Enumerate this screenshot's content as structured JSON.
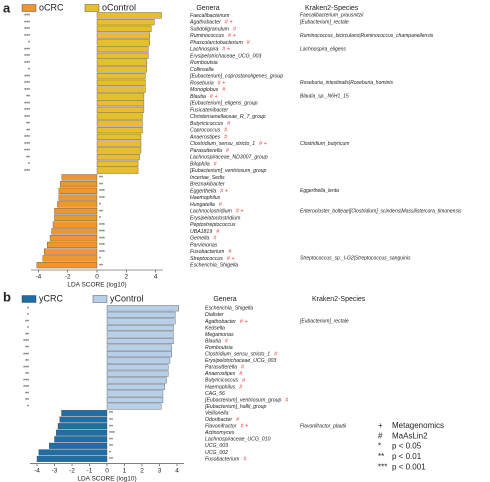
{
  "chart_data": [
    {
      "panel": "a",
      "type": "bar",
      "orientation": "horizontal",
      "genera_title": "Genera",
      "species_title": "Kraken2-Species",
      "categories": [
        "Faecalibacterium",
        "Agathobacter",
        "Subdoligranulum",
        "Ruminococcus",
        "Phascolarctobacterium",
        "Lachnospira",
        "Erysipelotrichaceae_UCG_003",
        "Romboutsia",
        "Collinsella",
        "[Eubacterium]_coprostanoligenes_group",
        "Roseburia",
        "Monoglobus",
        "Blautia",
        "[Eubacterium]_eligens_group",
        "Fusicatenibacter",
        "Christensenellaceae_R_7_group",
        "Butyricicoccus",
        "Coprococcus",
        "Anaerostipes",
        "Clostridium_sensu_stricto_1",
        "Parasutterella",
        "Lachnospiraceae_ND3007_group",
        "Bilophila",
        "[Eubacterium]_ventriosum_group",
        "Incertae_Sedis",
        "Breznakibacter",
        "Eggerthella",
        "Haemophilus",
        "Hungatella",
        "Lachnoclostridium",
        "Erysipelatoclostridium",
        "Peptostreptococcus",
        "UBA1819",
        "Gemella",
        "Parvimonas",
        "Fusobacterium",
        "Streptococcus",
        "Escherichia_Shigella"
      ],
      "series": [
        {
          "name": "oCRC",
          "color": "#f0962e",
          "values": [
            null,
            null,
            null,
            null,
            null,
            null,
            null,
            null,
            null,
            null,
            null,
            null,
            null,
            null,
            null,
            null,
            null,
            null,
            null,
            null,
            null,
            null,
            null,
            null,
            -2.4,
            -2.5,
            -2.6,
            -2.6,
            -2.7,
            -2.9,
            -2.9,
            -3.0,
            -3.1,
            -3.2,
            -3.4,
            -3.6,
            -3.7,
            -4.1
          ]
        },
        {
          "name": "oControl",
          "color": "#e8bd2e",
          "values": [
            4.4,
            3.9,
            3.7,
            3.6,
            3.6,
            3.5,
            3.5,
            3.4,
            3.4,
            3.3,
            3.3,
            3.3,
            3.2,
            3.2,
            3.2,
            3.1,
            3.1,
            3.1,
            3.0,
            3.0,
            3.0,
            2.9,
            2.8,
            2.8,
            null,
            null,
            null,
            null,
            null,
            null,
            null,
            null,
            null,
            null,
            null,
            null,
            null,
            null
          ]
        }
      ],
      "significance": [
        "***",
        "***",
        "***",
        "***",
        "*",
        "***",
        "***",
        "***",
        "*",
        "***",
        "***",
        "***",
        "**",
        "***",
        "***",
        "***",
        "**",
        "**",
        "***",
        "***",
        "***",
        "**",
        "*",
        "***",
        "**",
        "**",
        "***",
        "***",
        "*",
        "**",
        "*",
        "***",
        "***",
        "***",
        "***",
        "***",
        "*",
        "**"
      ],
      "methods": [
        null,
        "# +",
        "#",
        "# +",
        "#",
        "# +",
        null,
        null,
        null,
        null,
        "# +",
        "#",
        "# +",
        null,
        null,
        null,
        "#",
        "#",
        "#",
        "# +",
        "#",
        null,
        "#",
        null,
        null,
        null,
        "# +",
        null,
        "#",
        "# +",
        null,
        null,
        "#",
        "#",
        null,
        "#",
        "# +",
        null
      ],
      "species": [
        "Faecalibacterium_prausnitzii",
        "[Eubacterium]_rectale",
        null,
        "Ruminococcus_bicirculans|Ruminococcus_champanellensis",
        null,
        "Lachnospira_eligens",
        null,
        null,
        null,
        null,
        "Roseburia_intestinalis|Roseburia_hominis",
        null,
        "Blautia_sp._N6H1_15",
        null,
        null,
        null,
        null,
        null,
        null,
        "Clostridium_butyricum",
        null,
        null,
        null,
        null,
        null,
        null,
        "Eggerthella_lenta",
        null,
        null,
        "Enterocloster_bolteae|[Clostridium]_scindens|Massilistercora_timonensis",
        null,
        null,
        null,
        null,
        null,
        null,
        "Streptococcus_sp._I-G2|Streptococcus_sanguinis",
        null
      ],
      "xlabel": "LDA SCORE (log10)",
      "xlim": [
        -4.5,
        4.5
      ],
      "xticks": [
        -4,
        -2,
        0,
        2,
        4
      ]
    },
    {
      "panel": "b",
      "type": "bar",
      "orientation": "horizontal",
      "genera_title": "Genera",
      "species_title": "Kraken2-Species",
      "categories": [
        "Escherichia_Shigella",
        "Dialister",
        "Agathobacter",
        "Kedsella",
        "Megamonas",
        "Blautia",
        "Romboutsia",
        "Clostridium_sensu_stricto_1",
        "Erysipelotrichaceae_UCG_003",
        "Parasutterella",
        "Anaerostipes",
        "Butyricicoccus",
        "Haemophilus",
        "CAG_56",
        "[Eubacterium]_ventriosum_group",
        "[Eubacterium]_hallii_group",
        "Veillonella",
        "Odoribacter",
        "Flavonifractor",
        "Actinomyces",
        "Lachnospiraceae_UCG_010",
        "UCG_003",
        "UCG_002",
        "Fusobacterium"
      ],
      "series": [
        {
          "name": "yCRC",
          "color": "#1f6fa6",
          "values": [
            null,
            null,
            null,
            null,
            null,
            null,
            null,
            null,
            null,
            null,
            null,
            null,
            null,
            null,
            null,
            null,
            -2.6,
            -2.7,
            -2.8,
            -2.9,
            -3.0,
            -3.3,
            -3.9,
            -4.0
          ]
        },
        {
          "name": "yControl",
          "color": "#b7cfe8",
          "values": [
            4.1,
            3.9,
            3.9,
            3.8,
            3.8,
            3.8,
            3.7,
            3.7,
            3.6,
            3.5,
            3.5,
            3.4,
            3.3,
            3.2,
            3.2,
            3.1,
            null,
            null,
            null,
            null,
            null,
            null,
            null,
            null
          ]
        }
      ],
      "significance": [
        "*",
        "*",
        "**",
        "*",
        "**",
        "***",
        "**",
        "***",
        "**",
        "***",
        "**",
        "***",
        "***",
        "**",
        "**",
        "*",
        "**",
        "**",
        "**",
        "***",
        "**",
        "**",
        "*",
        "**"
      ],
      "methods": [
        null,
        null,
        "# +",
        null,
        null,
        "#",
        null,
        "#",
        null,
        "#",
        "#",
        "#",
        "#",
        null,
        "#",
        null,
        null,
        "#",
        "# +",
        null,
        null,
        null,
        null,
        "#"
      ],
      "species": [
        null,
        null,
        "[Eubacterium]_rectale",
        null,
        null,
        null,
        null,
        null,
        null,
        null,
        null,
        null,
        null,
        null,
        null,
        null,
        null,
        null,
        "Flavonifractor_plautii",
        null,
        null,
        null,
        null,
        null
      ],
      "xlabel": "LDA SCORE (log10)",
      "xlim": [
        -4.4,
        4.4
      ],
      "xticks": [
        -4,
        -3,
        -2,
        -1,
        0,
        1,
        2,
        3,
        4
      ]
    }
  ],
  "key": [
    {
      "symbol": "+",
      "label": "Metagenomics",
      "color": "#e8322b"
    },
    {
      "symbol": "#",
      "label": "MaAsLin2",
      "color": "#e8322b"
    },
    {
      "symbol": "*",
      "label": "p < 0.05",
      "color": "#222222"
    },
    {
      "symbol": "**",
      "label": "p < 0.01",
      "color": "#222222"
    },
    {
      "symbol": "***",
      "label": "p < 0.001",
      "color": "#222222"
    }
  ]
}
